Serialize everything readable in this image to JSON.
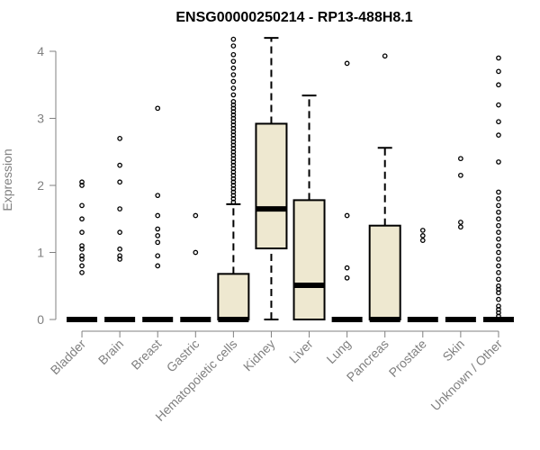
{
  "chart_data": {
    "type": "boxplot",
    "title": "ENSG00000250214 - RP13-488H8.1",
    "xlabel": "",
    "ylabel": "Expression",
    "ylim": [
      0,
      4.2
    ],
    "yticks": [
      "0",
      "1",
      "2",
      "3",
      "4"
    ],
    "box_fill": "#EEE8D0",
    "categories": [
      "Bladder",
      "Brain",
      "Breast",
      "Gastric",
      "Hematopoietic cells",
      "Kidney",
      "Liver",
      "Lung",
      "Pancreas",
      "Prostate",
      "Skin",
      "Unknown / Other"
    ],
    "boxes": [
      {
        "min": 0,
        "q1": 0,
        "median": 0,
        "q3": 0,
        "max": 0,
        "outliers": [
          0.7,
          0.8,
          0.9,
          0.95,
          1.05,
          1.1,
          1.3,
          1.5,
          1.7,
          2.0,
          2.05
        ]
      },
      {
        "min": 0,
        "q1": 0,
        "median": 0,
        "q3": 0,
        "max": 0,
        "outliers": [
          0.9,
          0.95,
          1.05,
          1.3,
          1.65,
          2.05,
          2.3,
          2.7
        ]
      },
      {
        "min": 0,
        "q1": 0,
        "median": 0,
        "q3": 0,
        "max": 0,
        "outliers": [
          0.8,
          0.95,
          1.15,
          1.25,
          1.35,
          1.55,
          1.85,
          3.15
        ]
      },
      {
        "min": 0,
        "q1": 0,
        "median": 0,
        "q3": 0,
        "max": 0,
        "outliers": [
          1.0,
          1.55
        ]
      },
      {
        "min": 0,
        "q1": 0,
        "median": 0,
        "q3": 0.68,
        "max": 1.72,
        "outliers": [
          1.75,
          1.8,
          1.85,
          1.9,
          1.95,
          2.0,
          2.05,
          2.1,
          2.15,
          2.2,
          2.25,
          2.3,
          2.35,
          2.4,
          2.45,
          2.5,
          2.55,
          2.6,
          2.65,
          2.7,
          2.75,
          2.8,
          2.85,
          2.9,
          2.95,
          3.0,
          3.05,
          3.1,
          3.15,
          3.2,
          3.25,
          3.35,
          3.45,
          3.55,
          3.65,
          3.75,
          3.85,
          3.95,
          4.08,
          4.18
        ]
      },
      {
        "min": 0,
        "q1": 1.06,
        "median": 1.65,
        "q3": 2.92,
        "max": 4.2,
        "outliers": []
      },
      {
        "min": 0,
        "q1": 0,
        "median": 0.51,
        "q3": 1.78,
        "max": 3.34,
        "outliers": []
      },
      {
        "min": 0,
        "q1": 0,
        "median": 0,
        "q3": 0,
        "max": 0,
        "outliers": [
          0.62,
          0.77,
          1.55,
          3.82
        ]
      },
      {
        "min": 0,
        "q1": 0,
        "median": 0,
        "q3": 1.4,
        "max": 2.56,
        "outliers": [
          3.93
        ]
      },
      {
        "min": 0,
        "q1": 0,
        "median": 0,
        "q3": 0,
        "max": 0,
        "outliers": [
          1.18,
          1.25,
          1.33
        ]
      },
      {
        "min": 0,
        "q1": 0,
        "median": 0,
        "q3": 0,
        "max": 0,
        "outliers": [
          1.38,
          1.45,
          2.15,
          2.4
        ]
      },
      {
        "min": 0,
        "q1": 0,
        "median": 0,
        "q3": 0,
        "max": 0,
        "outliers": [
          0.05,
          0.1,
          0.15,
          0.2,
          0.3,
          0.4,
          0.45,
          0.5,
          0.6,
          0.7,
          0.8,
          0.9,
          1.0,
          1.1,
          1.2,
          1.3,
          1.4,
          1.5,
          1.6,
          1.7,
          1.8,
          1.9,
          2.35,
          2.75,
          2.95,
          3.2,
          3.5,
          3.7,
          3.9
        ]
      }
    ]
  }
}
